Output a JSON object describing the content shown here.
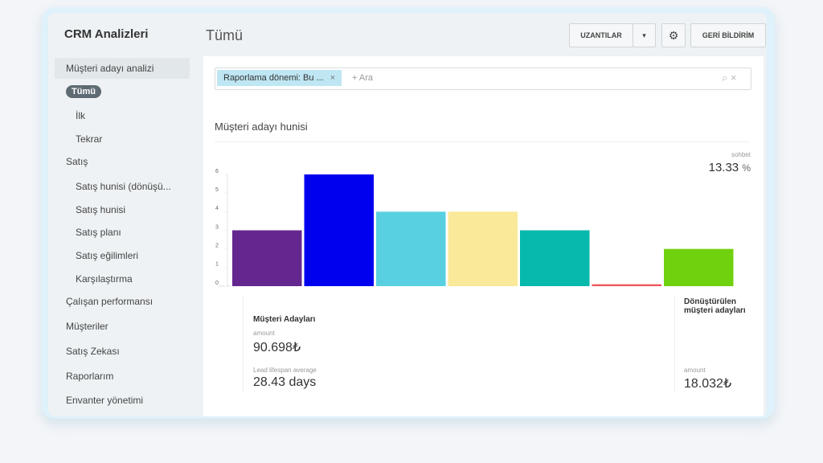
{
  "sidebar": {
    "title": "CRM Analizleri",
    "items": [
      "Müşteri adayı analizi",
      "Tümü",
      "İlk",
      "Tekrar",
      "Satış",
      "Satış hunisi (dönüşü...",
      "Satış hunisi",
      "Satış planı",
      "Satış eğilimleri",
      "Karşılaştırma",
      "Çalışan performansı",
      "Müşteriler",
      "Satış Zekası",
      "Raporlarım",
      "Envanter yönetimi"
    ]
  },
  "header": {
    "title": "Tümü",
    "buttons": [
      "UZANTILAR",
      "GERİ BİLDİRİM"
    ]
  },
  "filter": {
    "chip": "Raporlama dönemi: Bu ...",
    "search": "+ Ara"
  },
  "chart": {
    "type": "bar",
    "title": "Müşteri adayı hunisi",
    "values": [
      3,
      6,
      4,
      4,
      3,
      0.1,
      2
    ],
    "colors": [
      "#64278f",
      "#0000ee",
      "#59d0e1",
      "#fbe99a",
      "#07b8ac",
      "#f0545a",
      "#70d10f"
    ],
    "ylim": [
      0,
      6
    ],
    "yticks": [
      0,
      1,
      2,
      3,
      4,
      5,
      6
    ]
  },
  "conversion": {
    "label": "sohbet",
    "value": "13.33",
    "unit": "%"
  },
  "stats": {
    "left": {
      "title": "Müşteri Adayları",
      "amount_label": "amount",
      "amount": "90.698₺",
      "lifespan_label": "Lead lifespan average",
      "lifespan": "28.43 days"
    },
    "right": {
      "title": "Dönüştürülen müşteri adayları",
      "amount_label": "amount",
      "amount": "18.032₺"
    }
  }
}
